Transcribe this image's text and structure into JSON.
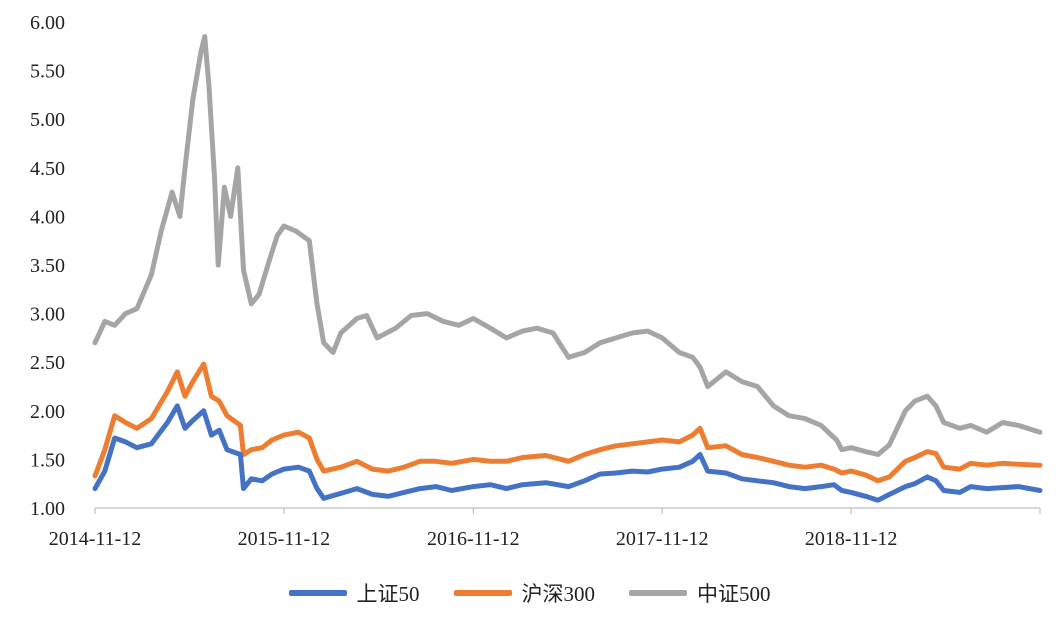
{
  "chart_data": {
    "type": "line",
    "title": "",
    "xlabel": "",
    "ylabel": "",
    "ylim": [
      1.0,
      6.0
    ],
    "y_ticks": [
      "1.00",
      "1.50",
      "2.00",
      "2.50",
      "3.00",
      "3.50",
      "4.00",
      "4.50",
      "5.00",
      "5.50",
      "6.00"
    ],
    "x_tick_labels": [
      "2014-11-12",
      "2015-11-12",
      "2016-11-12",
      "2017-11-12",
      "2018-11-12"
    ],
    "xlim": [
      "2014-11-12",
      "2019-11-12"
    ],
    "grid": false,
    "legend_position": "bottom",
    "series": [
      {
        "name": "上证50",
        "color": "#4472C4",
        "points": [
          [
            "2014-11-12",
            1.2
          ],
          [
            "2014-12-01",
            1.38
          ],
          [
            "2014-12-20",
            1.72
          ],
          [
            "2015-01-10",
            1.68
          ],
          [
            "2015-02-01",
            1.62
          ],
          [
            "2015-03-01",
            1.66
          ],
          [
            "2015-04-01",
            1.88
          ],
          [
            "2015-04-20",
            2.05
          ],
          [
            "2015-05-05",
            1.82
          ],
          [
            "2015-05-20",
            1.9
          ],
          [
            "2015-06-10",
            2.0
          ],
          [
            "2015-06-25",
            1.75
          ],
          [
            "2015-07-10",
            1.8
          ],
          [
            "2015-07-25",
            1.6
          ],
          [
            "2015-08-20",
            1.55
          ],
          [
            "2015-08-26",
            1.2
          ],
          [
            "2015-09-10",
            1.3
          ],
          [
            "2015-10-01",
            1.28
          ],
          [
            "2015-10-20",
            1.35
          ],
          [
            "2015-11-12",
            1.4
          ],
          [
            "2015-12-10",
            1.42
          ],
          [
            "2015-12-31",
            1.38
          ],
          [
            "2016-01-15",
            1.2
          ],
          [
            "2016-01-28",
            1.1
          ],
          [
            "2016-03-01",
            1.15
          ],
          [
            "2016-04-01",
            1.2
          ],
          [
            "2016-05-01",
            1.14
          ],
          [
            "2016-06-01",
            1.12
          ],
          [
            "2016-07-01",
            1.16
          ],
          [
            "2016-08-01",
            1.2
          ],
          [
            "2016-09-01",
            1.22
          ],
          [
            "2016-10-01",
            1.18
          ],
          [
            "2016-11-12",
            1.22
          ],
          [
            "2016-12-15",
            1.24
          ],
          [
            "2017-01-15",
            1.2
          ],
          [
            "2017-02-15",
            1.24
          ],
          [
            "2017-04-01",
            1.26
          ],
          [
            "2017-05-15",
            1.22
          ],
          [
            "2017-06-15",
            1.28
          ],
          [
            "2017-07-15",
            1.35
          ],
          [
            "2017-08-15",
            1.36
          ],
          [
            "2017-09-15",
            1.38
          ],
          [
            "2017-10-15",
            1.37
          ],
          [
            "2017-11-12",
            1.4
          ],
          [
            "2017-12-15",
            1.42
          ],
          [
            "2018-01-10",
            1.48
          ],
          [
            "2018-01-24",
            1.55
          ],
          [
            "2018-02-08",
            1.38
          ],
          [
            "2018-03-15",
            1.36
          ],
          [
            "2018-04-15",
            1.3
          ],
          [
            "2018-05-15",
            1.28
          ],
          [
            "2018-06-15",
            1.26
          ],
          [
            "2018-07-15",
            1.22
          ],
          [
            "2018-08-15",
            1.2
          ],
          [
            "2018-09-15",
            1.22
          ],
          [
            "2018-10-10",
            1.24
          ],
          [
            "2018-10-25",
            1.18
          ],
          [
            "2018-11-12",
            1.16
          ],
          [
            "2018-12-10",
            1.12
          ],
          [
            "2019-01-03",
            1.08
          ],
          [
            "2019-01-25",
            1.14
          ],
          [
            "2019-02-25",
            1.22
          ],
          [
            "2019-03-15",
            1.25
          ],
          [
            "2019-04-08",
            1.32
          ],
          [
            "2019-04-25",
            1.28
          ],
          [
            "2019-05-10",
            1.18
          ],
          [
            "2019-06-10",
            1.16
          ],
          [
            "2019-07-01",
            1.22
          ],
          [
            "2019-08-01",
            1.2
          ],
          [
            "2019-09-01",
            1.21
          ],
          [
            "2019-10-01",
            1.22
          ],
          [
            "2019-11-12",
            1.18
          ]
        ]
      },
      {
        "name": "沪深300",
        "color": "#ED7D31",
        "points": [
          [
            "2014-11-12",
            1.33
          ],
          [
            "2014-12-01",
            1.6
          ],
          [
            "2014-12-20",
            1.95
          ],
          [
            "2015-01-10",
            1.88
          ],
          [
            "2015-02-01",
            1.82
          ],
          [
            "2015-03-01",
            1.92
          ],
          [
            "2015-04-01",
            2.2
          ],
          [
            "2015-04-20",
            2.4
          ],
          [
            "2015-05-05",
            2.15
          ],
          [
            "2015-05-20",
            2.3
          ],
          [
            "2015-06-10",
            2.48
          ],
          [
            "2015-06-25",
            2.15
          ],
          [
            "2015-07-10",
            2.1
          ],
          [
            "2015-07-25",
            1.95
          ],
          [
            "2015-08-20",
            1.85
          ],
          [
            "2015-08-26",
            1.55
          ],
          [
            "2015-09-10",
            1.6
          ],
          [
            "2015-10-01",
            1.62
          ],
          [
            "2015-10-20",
            1.7
          ],
          [
            "2015-11-12",
            1.75
          ],
          [
            "2015-12-10",
            1.78
          ],
          [
            "2015-12-31",
            1.72
          ],
          [
            "2016-01-15",
            1.5
          ],
          [
            "2016-01-28",
            1.38
          ],
          [
            "2016-03-01",
            1.42
          ],
          [
            "2016-04-01",
            1.48
          ],
          [
            "2016-05-01",
            1.4
          ],
          [
            "2016-06-01",
            1.38
          ],
          [
            "2016-07-01",
            1.42
          ],
          [
            "2016-08-01",
            1.48
          ],
          [
            "2016-09-01",
            1.48
          ],
          [
            "2016-10-01",
            1.46
          ],
          [
            "2016-11-12",
            1.5
          ],
          [
            "2016-12-15",
            1.48
          ],
          [
            "2017-01-15",
            1.48
          ],
          [
            "2017-02-15",
            1.52
          ],
          [
            "2017-04-01",
            1.54
          ],
          [
            "2017-05-15",
            1.48
          ],
          [
            "2017-06-15",
            1.55
          ],
          [
            "2017-07-15",
            1.6
          ],
          [
            "2017-08-15",
            1.64
          ],
          [
            "2017-09-15",
            1.66
          ],
          [
            "2017-10-15",
            1.68
          ],
          [
            "2017-11-12",
            1.7
          ],
          [
            "2017-12-15",
            1.68
          ],
          [
            "2018-01-10",
            1.75
          ],
          [
            "2018-01-24",
            1.82
          ],
          [
            "2018-02-08",
            1.62
          ],
          [
            "2018-03-15",
            1.64
          ],
          [
            "2018-04-15",
            1.55
          ],
          [
            "2018-05-15",
            1.52
          ],
          [
            "2018-06-15",
            1.48
          ],
          [
            "2018-07-15",
            1.44
          ],
          [
            "2018-08-15",
            1.42
          ],
          [
            "2018-09-15",
            1.44
          ],
          [
            "2018-10-10",
            1.4
          ],
          [
            "2018-10-25",
            1.36
          ],
          [
            "2018-11-12",
            1.38
          ],
          [
            "2018-12-10",
            1.34
          ],
          [
            "2019-01-03",
            1.28
          ],
          [
            "2019-01-25",
            1.32
          ],
          [
            "2019-02-25",
            1.48
          ],
          [
            "2019-03-15",
            1.52
          ],
          [
            "2019-04-08",
            1.58
          ],
          [
            "2019-04-25",
            1.56
          ],
          [
            "2019-05-10",
            1.42
          ],
          [
            "2019-06-10",
            1.4
          ],
          [
            "2019-07-01",
            1.46
          ],
          [
            "2019-08-01",
            1.44
          ],
          [
            "2019-09-01",
            1.46
          ],
          [
            "2019-10-01",
            1.45
          ],
          [
            "2019-11-12",
            1.44
          ]
        ]
      },
      {
        "name": "中证500",
        "color": "#A5A5A5",
        "points": [
          [
            "2014-11-12",
            2.7
          ],
          [
            "2014-12-01",
            2.92
          ],
          [
            "2014-12-20",
            2.88
          ],
          [
            "2015-01-10",
            3.0
          ],
          [
            "2015-02-01",
            3.05
          ],
          [
            "2015-03-01",
            3.4
          ],
          [
            "2015-03-20",
            3.85
          ],
          [
            "2015-04-10",
            4.25
          ],
          [
            "2015-04-25",
            4.0
          ],
          [
            "2015-05-05",
            4.5
          ],
          [
            "2015-05-20",
            5.2
          ],
          [
            "2015-06-05",
            5.7
          ],
          [
            "2015-06-12",
            5.85
          ],
          [
            "2015-06-20",
            5.35
          ],
          [
            "2015-07-01",
            4.4
          ],
          [
            "2015-07-08",
            3.5
          ],
          [
            "2015-07-20",
            4.3
          ],
          [
            "2015-08-01",
            4.0
          ],
          [
            "2015-08-15",
            4.5
          ],
          [
            "2015-08-26",
            3.45
          ],
          [
            "2015-09-10",
            3.1
          ],
          [
            "2015-09-25",
            3.2
          ],
          [
            "2015-10-15",
            3.55
          ],
          [
            "2015-10-30",
            3.8
          ],
          [
            "2015-11-12",
            3.9
          ],
          [
            "2015-12-05",
            3.85
          ],
          [
            "2015-12-31",
            3.75
          ],
          [
            "2016-01-15",
            3.1
          ],
          [
            "2016-01-28",
            2.7
          ],
          [
            "2016-02-15",
            2.6
          ],
          [
            "2016-03-01",
            2.8
          ],
          [
            "2016-04-01",
            2.95
          ],
          [
            "2016-04-20",
            2.98
          ],
          [
            "2016-05-10",
            2.75
          ],
          [
            "2016-06-15",
            2.85
          ],
          [
            "2016-07-15",
            2.98
          ],
          [
            "2016-08-15",
            3.0
          ],
          [
            "2016-09-15",
            2.92
          ],
          [
            "2016-10-15",
            2.88
          ],
          [
            "2016-11-12",
            2.95
          ],
          [
            "2016-12-15",
            2.85
          ],
          [
            "2017-01-15",
            2.75
          ],
          [
            "2017-02-15",
            2.82
          ],
          [
            "2017-03-15",
            2.85
          ],
          [
            "2017-04-15",
            2.8
          ],
          [
            "2017-05-15",
            2.55
          ],
          [
            "2017-06-15",
            2.6
          ],
          [
            "2017-07-15",
            2.7
          ],
          [
            "2017-08-15",
            2.75
          ],
          [
            "2017-09-15",
            2.8
          ],
          [
            "2017-10-15",
            2.82
          ],
          [
            "2017-11-12",
            2.75
          ],
          [
            "2017-12-15",
            2.6
          ],
          [
            "2018-01-10",
            2.55
          ],
          [
            "2018-01-24",
            2.45
          ],
          [
            "2018-02-08",
            2.25
          ],
          [
            "2018-03-15",
            2.4
          ],
          [
            "2018-04-15",
            2.3
          ],
          [
            "2018-05-15",
            2.25
          ],
          [
            "2018-06-15",
            2.05
          ],
          [
            "2018-07-15",
            1.95
          ],
          [
            "2018-08-15",
            1.92
          ],
          [
            "2018-09-15",
            1.85
          ],
          [
            "2018-10-15",
            1.7
          ],
          [
            "2018-10-25",
            1.6
          ],
          [
            "2018-11-12",
            1.62
          ],
          [
            "2018-12-10",
            1.58
          ],
          [
            "2019-01-03",
            1.55
          ],
          [
            "2019-01-25",
            1.65
          ],
          [
            "2019-02-25",
            2.0
          ],
          [
            "2019-03-15",
            2.1
          ],
          [
            "2019-04-08",
            2.15
          ],
          [
            "2019-04-25",
            2.05
          ],
          [
            "2019-05-10",
            1.88
          ],
          [
            "2019-06-10",
            1.82
          ],
          [
            "2019-07-01",
            1.85
          ],
          [
            "2019-08-01",
            1.78
          ],
          [
            "2019-09-01",
            1.88
          ],
          [
            "2019-10-01",
            1.85
          ],
          [
            "2019-11-12",
            1.78
          ]
        ]
      }
    ]
  }
}
